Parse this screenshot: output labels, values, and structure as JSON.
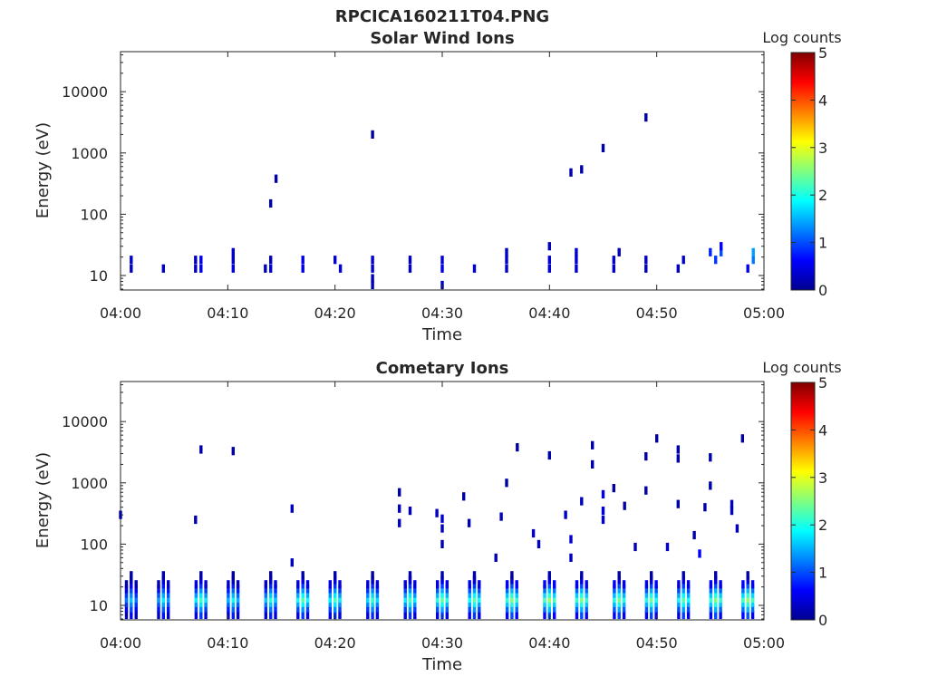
{
  "figure": {
    "file_title": "RPCICA160211T04.PNG"
  },
  "chart_data": [
    {
      "type": "heatmap",
      "title": "Solar Wind Ions",
      "xlabel": "Time",
      "ylabel": "Energy (eV)",
      "x_scale": "time",
      "y_scale": "log",
      "xlim": [
        "04:00",
        "05:00"
      ],
      "ylim": [
        5.8,
        45000
      ],
      "x_ticks": [
        "04:00",
        "04:10",
        "04:20",
        "04:30",
        "04:40",
        "04:50",
        "05:00"
      ],
      "y_ticks": [
        10,
        100,
        1000,
        10000
      ],
      "y_tick_labels": [
        "10",
        "100",
        "1000",
        "10000"
      ],
      "colorbar": {
        "label": "Log counts",
        "range": [
          0,
          5
        ],
        "ticks": [
          "0",
          "1",
          "2",
          "3",
          "4",
          "5"
        ],
        "colormap": "jet"
      },
      "grid": false,
      "cells": [
        [
          "04:01",
          13,
          0.3
        ],
        [
          "04:01",
          18,
          0.4
        ],
        [
          "04:04",
          13,
          0.3
        ],
        [
          "04:07",
          13,
          0.3
        ],
        [
          "04:07",
          18,
          0.3
        ],
        [
          "04:07.5",
          13,
          0.5
        ],
        [
          "04:07.5",
          18,
          0.5
        ],
        [
          "04:10.5",
          13,
          0.5
        ],
        [
          "04:10.5",
          18,
          0.4
        ],
        [
          "04:10.5",
          24,
          0.4
        ],
        [
          "04:13.5",
          13,
          0.3
        ],
        [
          "04:14",
          18,
          0.3
        ],
        [
          "04:14",
          13,
          0.4
        ],
        [
          "04:17",
          13,
          0.5
        ],
        [
          "04:17",
          18,
          0.5
        ],
        [
          "04:20",
          18,
          0.4
        ],
        [
          "04:20.5",
          13,
          0.4
        ],
        [
          "04:23.5",
          13,
          0.4
        ],
        [
          "04:23.5",
          18,
          0.4
        ],
        [
          "04:23.5",
          9,
          0.3
        ],
        [
          "04:23.5",
          7,
          0.3
        ],
        [
          "04:27",
          13,
          0.3
        ],
        [
          "04:27",
          18,
          0.3
        ],
        [
          "04:30",
          13,
          0.5
        ],
        [
          "04:30",
          18,
          0.4
        ],
        [
          "04:30",
          7,
          0.3
        ],
        [
          "04:33",
          13,
          0.4
        ],
        [
          "04:36",
          13,
          0.4
        ],
        [
          "04:36",
          18,
          0.4
        ],
        [
          "04:36",
          24,
          0.4
        ],
        [
          "04:40",
          13,
          0.4
        ],
        [
          "04:40",
          18,
          0.4
        ],
        [
          "04:40",
          30,
          0.3
        ],
        [
          "04:42.5",
          13,
          0.4
        ],
        [
          "04:42.5",
          18,
          0.4
        ],
        [
          "04:42.5",
          24,
          0.4
        ],
        [
          "04:46",
          13,
          0.4
        ],
        [
          "04:46",
          18,
          0.4
        ],
        [
          "04:46.5",
          24,
          0.3
        ],
        [
          "04:49",
          13,
          0.3
        ],
        [
          "04:49",
          18,
          0.4
        ],
        [
          "04:52",
          13,
          0.3
        ],
        [
          "04:52.5",
          18,
          0.3
        ],
        [
          "04:55",
          24,
          0.8
        ],
        [
          "04:55.5",
          18,
          0.9
        ],
        [
          "04:56",
          24,
          1.0
        ],
        [
          "04:56",
          30,
          0.6
        ],
        [
          "04:58.5",
          13,
          0.6
        ],
        [
          "04:59",
          18,
          1.2
        ],
        [
          "04:59",
          24,
          1.4
        ],
        [
          "04:14",
          150,
          0.2
        ],
        [
          "04:14.5",
          380,
          0.2
        ],
        [
          "04:23.5",
          2000,
          0.2
        ],
        [
          "04:42",
          480,
          0.2
        ],
        [
          "04:43",
          540,
          0.2
        ],
        [
          "04:45",
          1200,
          0.2
        ],
        [
          "04:49",
          3800,
          0.2
        ]
      ]
    },
    {
      "type": "heatmap",
      "title": "Cometary Ions",
      "xlabel": "Time",
      "ylabel": "Energy (eV)",
      "x_scale": "time",
      "y_scale": "log",
      "xlim": [
        "04:00",
        "05:00"
      ],
      "ylim": [
        5.8,
        45000
      ],
      "x_ticks": [
        "04:00",
        "04:10",
        "04:20",
        "04:30",
        "04:40",
        "04:50",
        "05:00"
      ],
      "y_ticks": [
        10,
        100,
        1000,
        10000
      ],
      "y_tick_labels": [
        "10",
        "100",
        "1000",
        "10000"
      ],
      "colorbar": {
        "label": "Log counts",
        "range": [
          0,
          5
        ],
        "ticks": [
          "0",
          "1",
          "2",
          "3",
          "4",
          "5"
        ],
        "colormap": "jet"
      },
      "grid": false,
      "bursts": [
        {
          "t": "04:01",
          "level": 1.6
        },
        {
          "t": "04:04",
          "level": 1.8
        },
        {
          "t": "04:07.5",
          "level": 2.2
        },
        {
          "t": "04:10.5",
          "level": 1.9
        },
        {
          "t": "04:14",
          "level": 2.0
        },
        {
          "t": "04:17",
          "level": 2.3
        },
        {
          "t": "04:20",
          "level": 2.2
        },
        {
          "t": "04:23.5",
          "level": 2.1
        },
        {
          "t": "04:27",
          "level": 2.2
        },
        {
          "t": "04:30",
          "level": 2.4
        },
        {
          "t": "04:33",
          "level": 2.3
        },
        {
          "t": "04:36.5",
          "level": 2.5
        },
        {
          "t": "04:40",
          "level": 2.6
        },
        {
          "t": "04:43",
          "level": 2.5
        },
        {
          "t": "04:46.5",
          "level": 2.4
        },
        {
          "t": "04:49.5",
          "level": 2.4
        },
        {
          "t": "04:52.5",
          "level": 2.3
        },
        {
          "t": "04:55.5",
          "level": 2.5
        },
        {
          "t": "04:58.5",
          "level": 2.6
        }
      ],
      "cells": [
        [
          "04:00",
          300,
          0.2
        ],
        [
          "04:07",
          250,
          0.2
        ],
        [
          "04:07.5",
          3500,
          0.2
        ],
        [
          "04:10.5",
          3300,
          0.2
        ],
        [
          "04:16",
          50,
          0.3
        ],
        [
          "04:16",
          380,
          0.3
        ],
        [
          "04:26",
          700,
          0.2
        ],
        [
          "04:26",
          380,
          0.3
        ],
        [
          "04:26",
          220,
          0.3
        ],
        [
          "04:27",
          350,
          0.3
        ],
        [
          "04:29.5",
          320,
          0.3
        ],
        [
          "04:30",
          260,
          0.4
        ],
        [
          "04:30",
          180,
          0.3
        ],
        [
          "04:30",
          100,
          0.2
        ],
        [
          "04:32",
          600,
          0.2
        ],
        [
          "04:32.5",
          220,
          0.2
        ],
        [
          "04:35",
          60,
          0.3
        ],
        [
          "04:35.5",
          280,
          0.3
        ],
        [
          "04:36",
          1000,
          0.2
        ],
        [
          "04:37",
          3800,
          0.2
        ],
        [
          "04:38.5",
          150,
          0.4
        ],
        [
          "04:39",
          100,
          0.3
        ],
        [
          "04:40",
          2800,
          0.2
        ],
        [
          "04:41.5",
          300,
          0.3
        ],
        [
          "04:42",
          120,
          0.4
        ],
        [
          "04:42",
          60,
          0.3
        ],
        [
          "04:43",
          500,
          0.3
        ],
        [
          "04:44",
          4100,
          0.2
        ],
        [
          "04:44",
          2000,
          0.2
        ],
        [
          "04:45",
          650,
          0.5
        ],
        [
          "04:45",
          350,
          0.5
        ],
        [
          "04:45",
          250,
          0.4
        ],
        [
          "04:46",
          820,
          0.2
        ],
        [
          "04:47",
          420,
          0.2
        ],
        [
          "04:48",
          90,
          0.3
        ],
        [
          "04:49",
          750,
          0.2
        ],
        [
          "04:49",
          2700,
          0.2
        ],
        [
          "04:50",
          5300,
          0.2
        ],
        [
          "04:51",
          90,
          0.4
        ],
        [
          "04:52",
          3500,
          0.2
        ],
        [
          "04:52",
          2500,
          0.2
        ],
        [
          "04:52",
          450,
          0.2
        ],
        [
          "04:53.5",
          140,
          0.2
        ],
        [
          "04:54",
          70,
          0.6
        ],
        [
          "04:54.5",
          400,
          0.2
        ],
        [
          "04:55",
          900,
          0.2
        ],
        [
          "04:55",
          2600,
          0.2
        ],
        [
          "04:57",
          450,
          0.3
        ],
        [
          "04:57",
          350,
          0.3
        ],
        [
          "04:57.5",
          180,
          0.3
        ],
        [
          "04:58",
          5300,
          0.2
        ]
      ]
    }
  ]
}
